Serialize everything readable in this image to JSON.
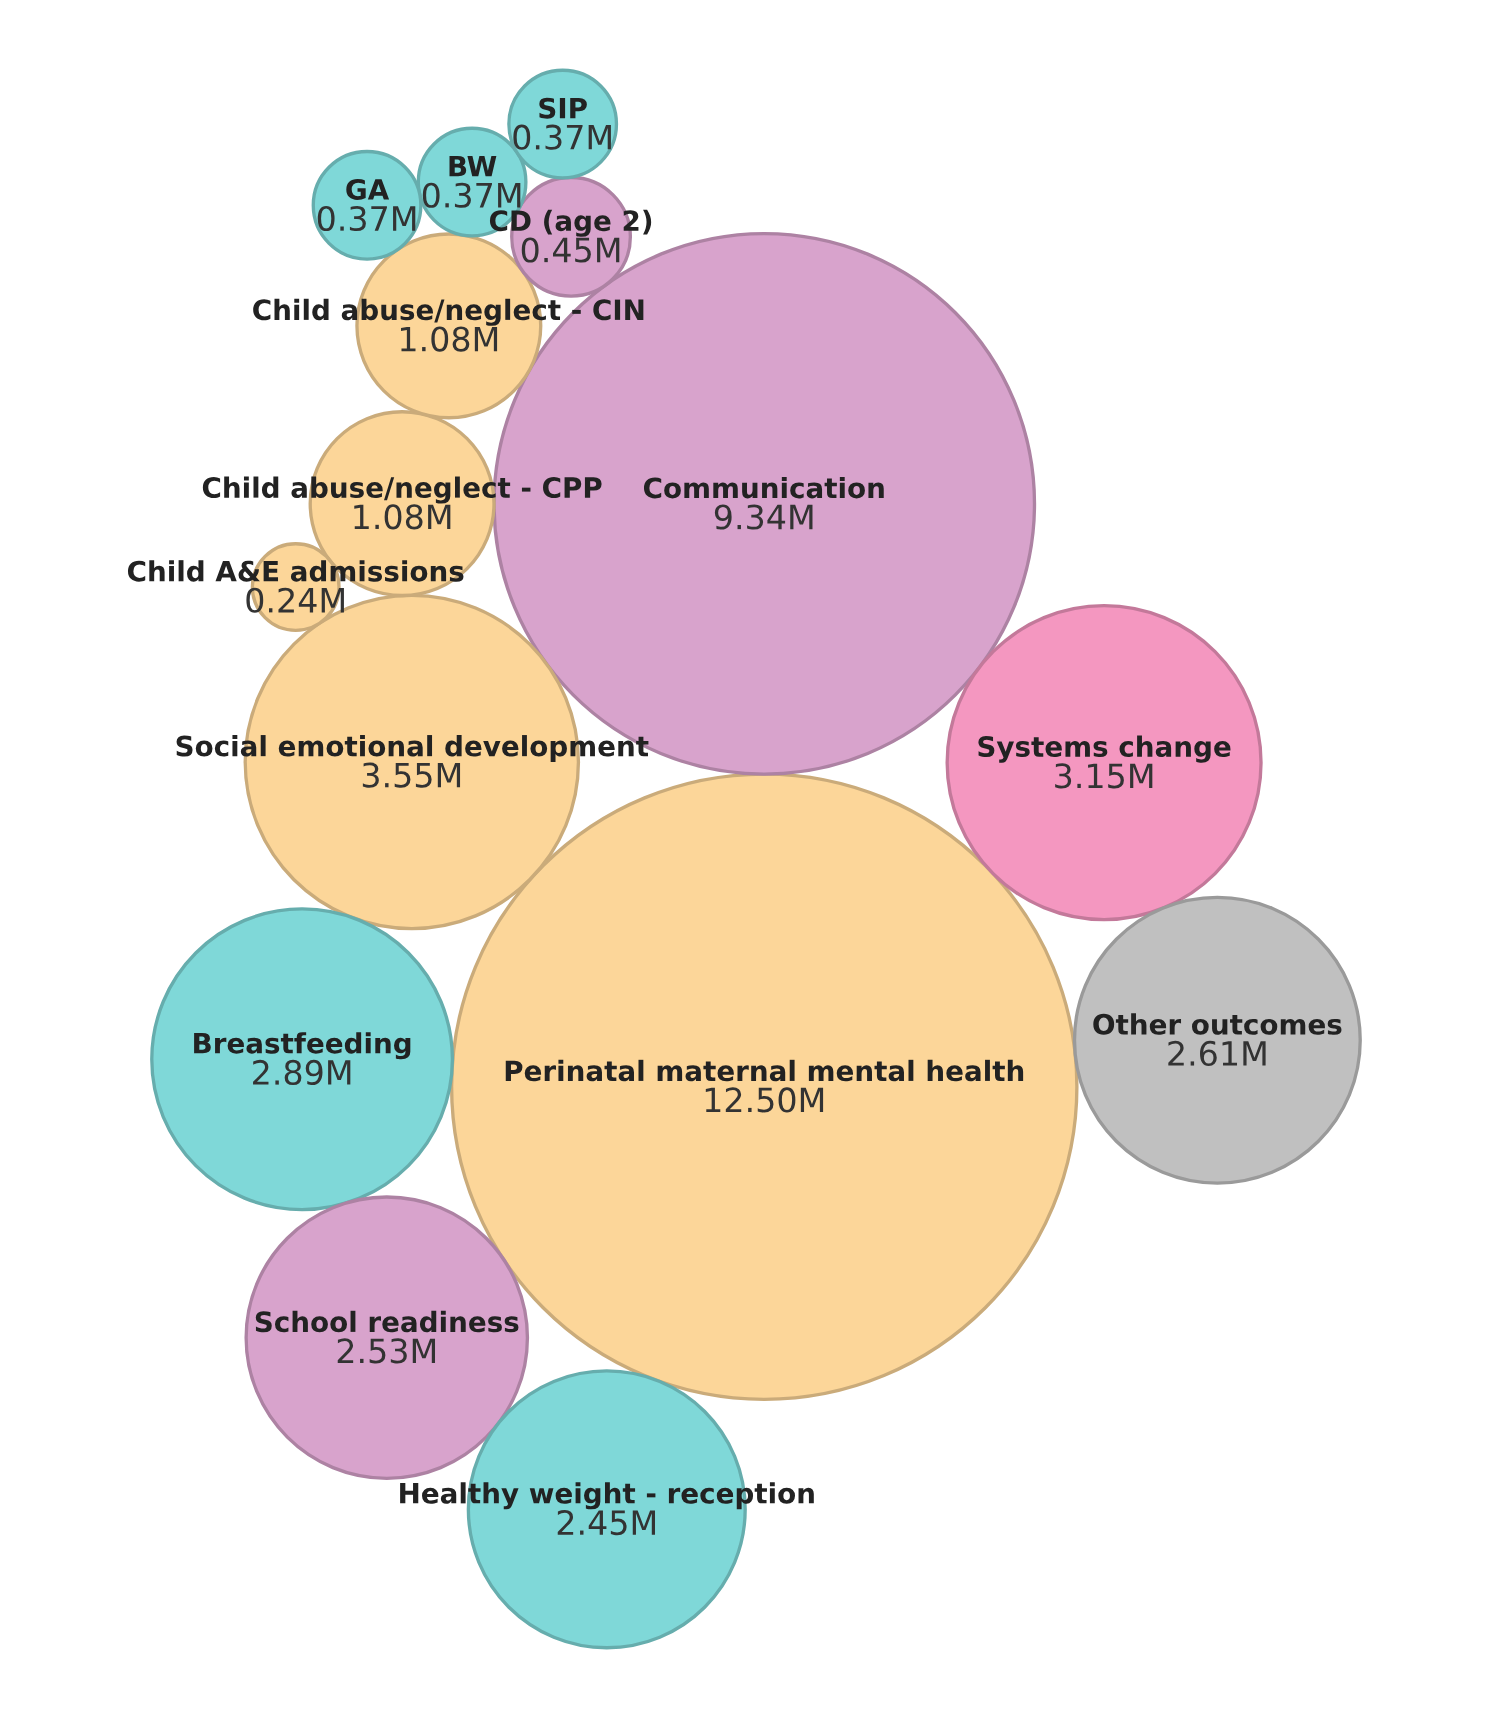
{
  "chart_data": {
    "type": "other",
    "categories": [
      "Perinatal maternal mental health",
      "Communication",
      "Social emotional development",
      "Systems change",
      "Breastfeeding",
      "Other outcomes",
      "School readiness",
      "Healthy weight - reception",
      "Child abuse/neglect - CPP",
      "Child abuse/neglect - CIN",
      "CD (age 2)",
      "BW",
      "GA",
      "SIP",
      "Child A&E admissions"
    ],
    "values": [
      12.5,
      9.34,
      3.55,
      3.15,
      2.89,
      2.61,
      2.53,
      2.45,
      1.08,
      1.08,
      0.45,
      0.37,
      0.37,
      0.37,
      0.24
    ],
    "value_labels": [
      "12.50M",
      "9.34M",
      "3.55M",
      "3.15M",
      "2.89M",
      "2.61M",
      "2.53M",
      "2.45M",
      "1.08M",
      "1.08M",
      "0.45M",
      "0.37M",
      "0.37M",
      "0.37M",
      "0.24M"
    ],
    "colors": [
      "#fcd699",
      "#d8a3cc",
      "#fcd699",
      "#f497c0",
      "#7fd8d8",
      "#c0c0c0",
      "#d8a3cc",
      "#7fd8d8",
      "#fcd699",
      "#fcd699",
      "#d8a3cc",
      "#7fd8d8",
      "#7fd8d8",
      "#7fd8d8",
      "#fcd699"
    ]
  }
}
